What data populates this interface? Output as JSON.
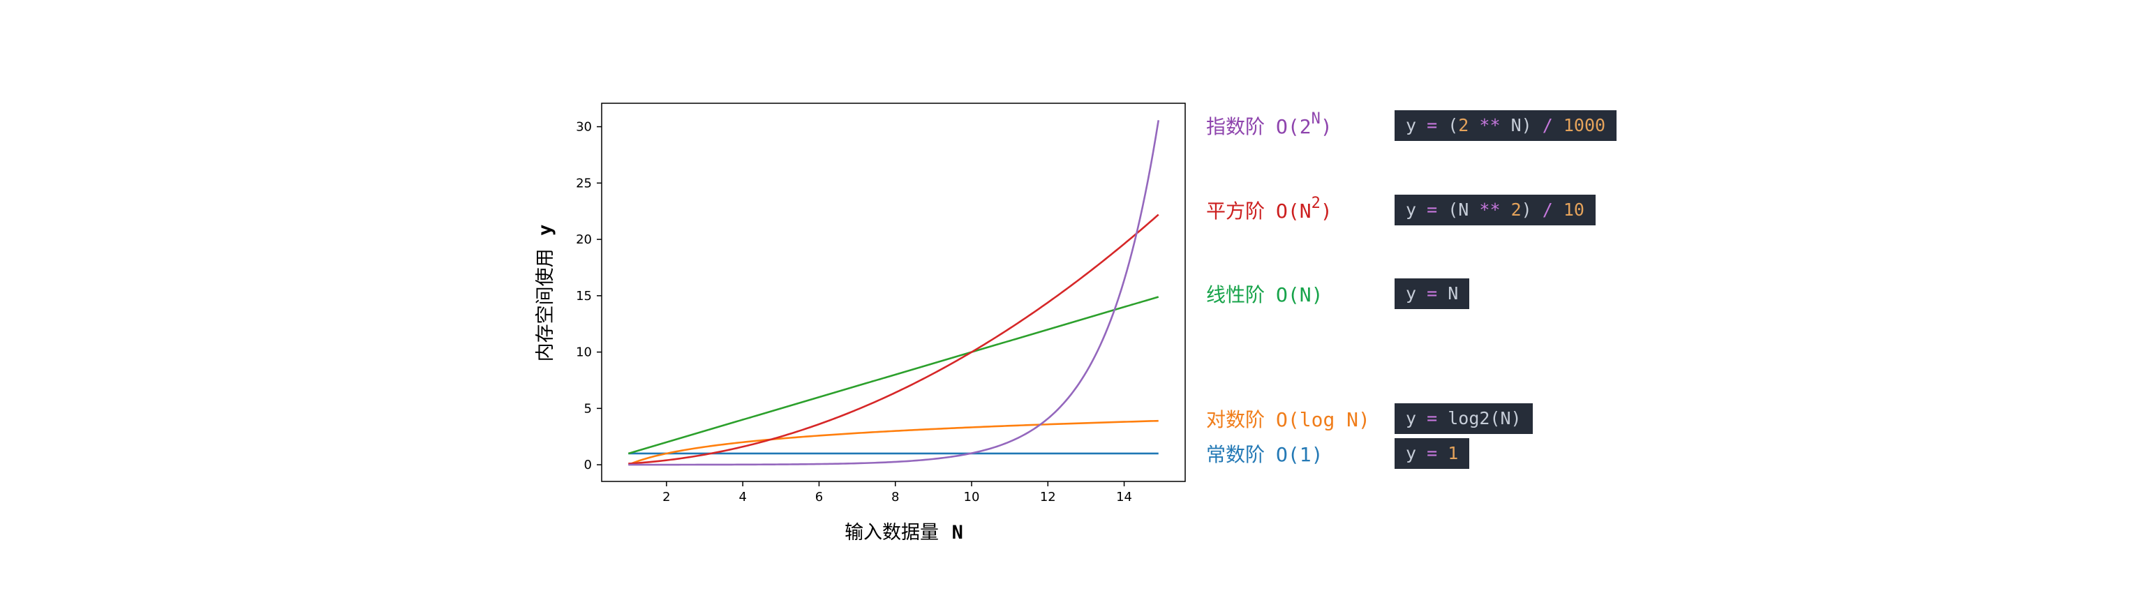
{
  "chart_data": {
    "type": "line",
    "title": "",
    "xlabel": {
      "text": "输入数据量",
      "symbol": "N"
    },
    "ylabel": {
      "text": "内存空间使用",
      "symbol": "y"
    },
    "xlim": [
      0.3,
      15.6
    ],
    "ylim": [
      -1.48,
      32.08
    ],
    "xticks": [
      2,
      4,
      6,
      8,
      10,
      12,
      14
    ],
    "yticks": [
      0,
      5,
      10,
      15,
      20,
      25,
      30
    ],
    "grid": false,
    "x_range": [
      1,
      14.9
    ],
    "series": [
      {
        "key": "constant",
        "formula": "1",
        "color": "#1f77b4"
      },
      {
        "key": "log",
        "formula": "log2",
        "color": "#ff7f0e"
      },
      {
        "key": "linear",
        "formula": "linear",
        "color": "#2ca02c"
      },
      {
        "key": "quadratic",
        "formula": "square_over_10",
        "color": "#d62728"
      },
      {
        "key": "exponential",
        "formula": "pow2_over_1000",
        "color": "#9467bd"
      }
    ]
  },
  "legend": [
    {
      "key": "exponential",
      "label": "指数阶",
      "notation": "O(2",
      "sup": "N",
      "close": ")",
      "color": "#8e44ad",
      "code": [
        [
          "y ",
          ""
        ],
        [
          "=",
          "op"
        ],
        [
          " (",
          ""
        ],
        [
          "2",
          "num"
        ],
        [
          " ",
          ""
        ],
        [
          "**",
          "op"
        ],
        [
          " N) ",
          ""
        ],
        [
          "/",
          "op"
        ],
        [
          " ",
          ""
        ],
        [
          "1000",
          "num"
        ]
      ]
    },
    {
      "key": "quadratic",
      "label": "平方阶",
      "notation": "O(N",
      "sup": "2",
      "close": ")",
      "color": "#cc1f1f",
      "code": [
        [
          "y ",
          ""
        ],
        [
          "=",
          "op"
        ],
        [
          " (N ",
          ""
        ],
        [
          "**",
          "op"
        ],
        [
          " ",
          ""
        ],
        [
          "2",
          "num"
        ],
        [
          ") ",
          ""
        ],
        [
          "/",
          "op"
        ],
        [
          " ",
          ""
        ],
        [
          "10",
          "num"
        ]
      ]
    },
    {
      "key": "linear",
      "label": "线性阶",
      "notation": "O(N)",
      "sup": "",
      "close": "",
      "color": "#17a34a",
      "code": [
        [
          "y ",
          ""
        ],
        [
          "=",
          "op"
        ],
        [
          " N",
          ""
        ]
      ]
    },
    {
      "key": "log",
      "label": "对数阶",
      "notation": "O(log N)",
      "sup": "",
      "close": "",
      "color": "#f07d1a",
      "code": [
        [
          "y ",
          ""
        ],
        [
          "=",
          "op"
        ],
        [
          " log2(N)",
          ""
        ]
      ]
    },
    {
      "key": "constant",
      "label": "常数阶",
      "notation": "O(1)",
      "sup": "",
      "close": "",
      "color": "#2479b5",
      "code": [
        [
          "y ",
          ""
        ],
        [
          "=",
          "op"
        ],
        [
          " ",
          ""
        ],
        [
          "1",
          "num"
        ]
      ]
    }
  ]
}
